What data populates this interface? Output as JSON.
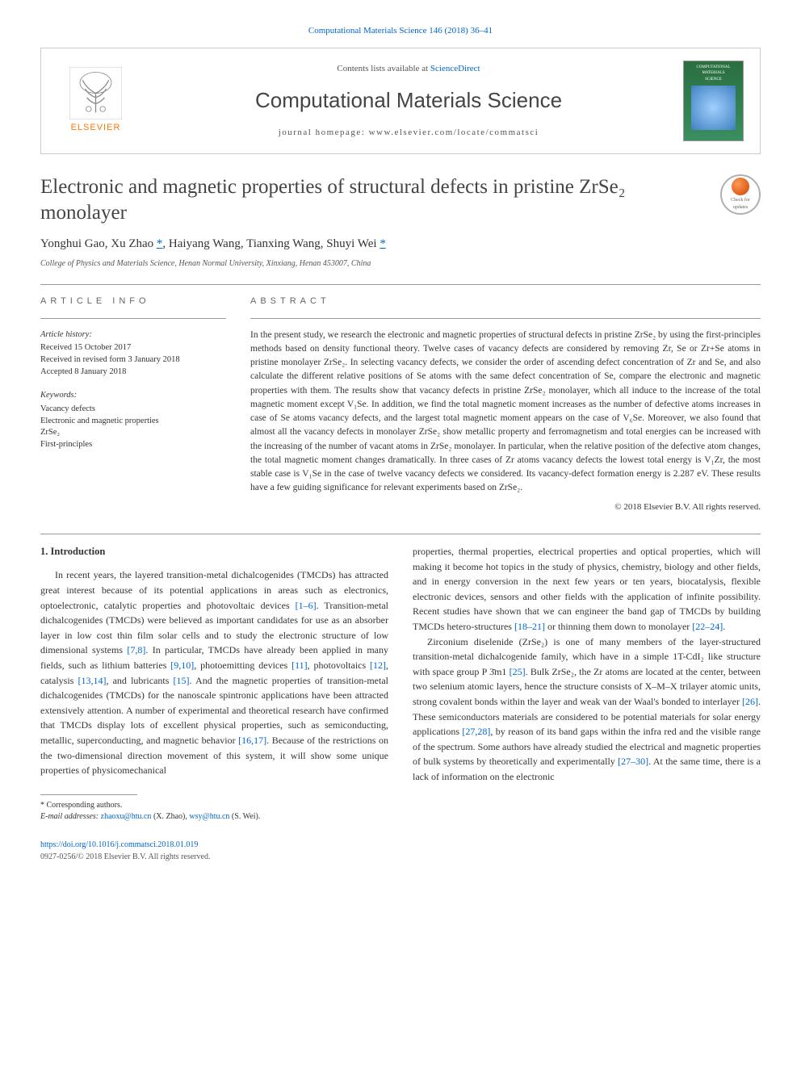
{
  "top_link": "Computational Materials Science 146 (2018) 36–41",
  "banner": {
    "contents_prefix": "Contents lists available at ",
    "contents_link": "ScienceDirect",
    "journal_name": "Computational Materials Science",
    "homepage_prefix": "journal homepage: ",
    "homepage_url": "www.elsevier.com/locate/commatsci",
    "elsevier_label": "ELSEVIER",
    "cover_top": "COMPUTATIONAL",
    "cover_mid": "MATERIALS",
    "cover_bot": "SCIENCE"
  },
  "title": "Electronic and magnetic properties of structural defects in pristine ZrSe₂ monolayer",
  "updates_badge": {
    "line1": "Check for",
    "line2": "updates"
  },
  "authors": {
    "a1": "Yonghui Gao",
    "a2": "Xu Zhao",
    "a3": "Haiyang Wang",
    "a4": "Tianxing Wang",
    "a5": "Shuyi Wei",
    "sep": ", ",
    "corr": "*"
  },
  "affiliation": "College of Physics and Materials Science, Henan Normal University, Xinxiang, Henan 453007, China",
  "info": {
    "heading": "article info",
    "history_title": "Article history:",
    "history_body": "Received 15 October 2017\nReceived in revised form 3 January 2018\nAccepted 8 January 2018",
    "keywords_title": "Keywords:",
    "keywords_body": "Vacancy defects\nElectronic and magnetic properties\nZrSe₂\nFirst-principles"
  },
  "abstract": {
    "heading": "abstract",
    "body": "In the present study, we research the electronic and magnetic properties of structural defects in pristine ZrSe₂ by using the first-principles methods based on density functional theory. Twelve cases of vacancy defects are considered by removing Zr, Se or Zr+Se atoms in pristine monolayer ZrSe₂. In selecting vacancy defects, we consider the order of ascending defect concentration of Zr and Se, and also calculate the different relative positions of Se atoms with the same defect concentration of Se, compare the electronic and magnetic properties with them. The results show that vacancy defects in pristine ZrSe₂ monolayer, which all induce to the increase of the total magnetic moment except V₁Se. In addition, we find the total magnetic moment increases as the number of defective atoms increases in case of Se atoms vacancy defects, and the largest total magnetic moment appears on the case of V₆Se. Moreover, we also found that almost all the vacancy defects in monolayer ZrSe₂ show metallic property and ferromagnetism and total energies can be increased with the increasing of the number of vacant atoms in ZrSe₂ monolayer. In particular, when the relative position of the defective atom changes, the total magnetic moment changes dramatically. In three cases of Zr atoms vacancy defects the lowest total energy is V₁Zr, the most stable case is V₁Se in the case of twelve vacancy defects we considered. Its vacancy-defect formation energy is 2.287 eV. These results have a few guiding significance for relevant experiments based on ZrSe₂.",
    "copyright": "© 2018 Elsevier B.V. All rights reserved."
  },
  "intro": {
    "heading": "1. Introduction",
    "col1": "In recent years, the layered transition-metal dichalcogenides (TMCDs) has attracted great interest because of its potential applications in areas such as electronics, optoelectronic, catalytic properties and photovoltaic devices [1–6]. Transition-metal dichalcogenides (TMCDs) were believed as important candidates for use as an absorber layer in low cost thin film solar cells and to study the electronic structure of low dimensional systems [7,8]. In particular, TMCDs have already been applied in many fields, such as lithium batteries [9,10], photoemitting devices [11], photovoltaics [12], catalysis [13,14], and lubricants [15]. And the magnetic properties of transition-metal dichalcogenides (TMCDs) for the nanoscale spintronic applications have been attracted extensively attention. A number of experimental and theoretical research have confirmed that TMCDs display lots of excellent physical properties, such as semiconducting, metallic, superconducting, and magnetic behavior [16,17]. Because of the restrictions on the two-dimensional direction movement of this system, it will show some unique properties of physicomechanical",
    "col2a": "properties, thermal properties, electrical properties and optical properties, which will making it become hot topics in the study of physics, chemistry, biology and other fields, and in energy conversion in the next few years or ten years, biocatalysis, flexible electronic devices, sensors and other fields with the application of infinite possibility. Recent studies have shown that we can engineer the band gap of TMCDs by building TMCDs hetero-structures [18–21] or thinning them down to monolayer [22–24].",
    "col2b": "Zirconium diselenide (ZrSe₂) is one of many members of the layer-structured transition-metal dichalcogenide family, which have in a simple 1T-CdI₂ like structure with space group P 3̄m1 [25]. Bulk ZrSe₂, the Zr atoms are located at the center, between two selenium atomic layers, hence the structure consists of X–M–X trilayer atomic units, strong covalent bonds within the layer and weak van der Waal's bonded to interlayer [26]. These semiconductors materials are considered to be potential materials for solar energy applications [27,28], by reason of its band gaps within the infra red and the visible range of the spectrum. Some authors have already studied the electrical and magnetic properties of bulk systems by theoretically and experimentally [27–30]. At the same time, there is a lack of information on the electronic"
  },
  "footnote": {
    "corr": "* Corresponding authors.",
    "emails_label": "E-mail addresses: ",
    "email1": "zhaoxu@htu.cn",
    "name1": " (X. Zhao), ",
    "email2": "wsy@htu.cn",
    "name2": " (S. Wei)."
  },
  "bottom": {
    "doi": "https://doi.org/10.1016/j.commatsci.2018.01.019",
    "issn": "0927-0256/© 2018 Elsevier B.V. All rights reserved."
  },
  "colors": {
    "link": "#0066cc",
    "elsevier": "#ff7700",
    "text": "#333333",
    "border": "#cccccc"
  }
}
